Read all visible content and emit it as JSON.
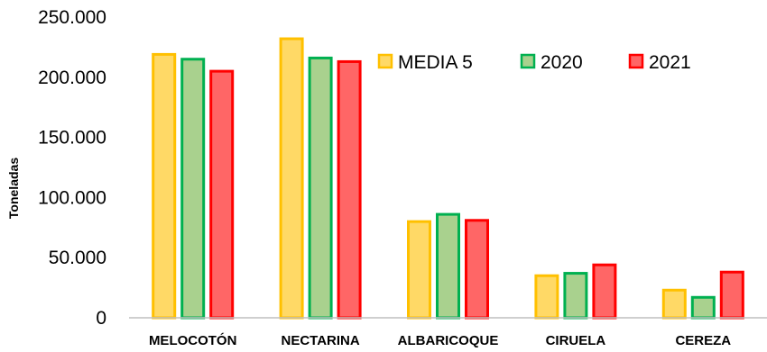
{
  "chart_data": {
    "type": "bar",
    "title": "",
    "xlabel": "",
    "ylabel": "Toneladas",
    "categories": [
      "MELOCOTÓN",
      "NECTARINA",
      "ALBARICOQUE",
      "CIRUELA",
      "CEREZA"
    ],
    "series": [
      {
        "name": "MEDIA 5",
        "values": [
          219000,
          232000,
          80000,
          35000,
          23000
        ],
        "fill": "#FFD966",
        "stroke": "#FFC000"
      },
      {
        "name": "2020",
        "values": [
          215000,
          216000,
          86000,
          37000,
          17000
        ],
        "fill": "#A9D18E",
        "stroke": "#00B050"
      },
      {
        "name": "2021",
        "values": [
          205000,
          213000,
          81000,
          44000,
          38000
        ],
        "fill": "#FF6666",
        "stroke": "#FF0000"
      }
    ],
    "ylim": [
      0,
      250000
    ],
    "yticks": [
      0,
      50000,
      100000,
      150000,
      200000,
      250000
    ],
    "ytick_labels": [
      "0",
      "50.000",
      "100.000",
      "150.000",
      "200.000",
      "250.000"
    ],
    "grid": false,
    "legend_position": "top-right"
  }
}
